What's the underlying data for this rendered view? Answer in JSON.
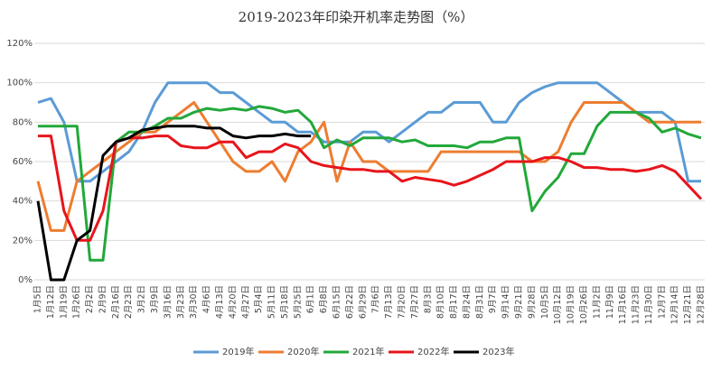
{
  "chart_data": {
    "type": "line",
    "title": "2019-2023年印染开机率走势图（%）",
    "categories": [
      "1月5日",
      "1月12日",
      "1月19日",
      "1月26日",
      "2月2日",
      "2月9日",
      "2月16日",
      "2月23日",
      "3月2日",
      "3月9日",
      "3月16日",
      "3月23日",
      "3月30日",
      "4月6日",
      "4月13日",
      "4月20日",
      "4月27日",
      "5月4日",
      "5月11日",
      "5月18日",
      "5月25日",
      "6月1日",
      "6月8日",
      "6月15日",
      "6月22日",
      "6月29日",
      "7月6日",
      "7月13日",
      "7月20日",
      "7月27日",
      "8月3日",
      "8月10日",
      "8月17日",
      "8月24日",
      "8月31日",
      "9月7日",
      "9月14日",
      "9月21日",
      "9月28日",
      "10月5日",
      "10月12日",
      "10月19日",
      "10月26日",
      "11月2日",
      "11月9日",
      "11月16日",
      "11月23日",
      "11月30日",
      "12月7日",
      "12月14日",
      "12月21日",
      "12月28日"
    ],
    "series": [
      {
        "name": "2019年",
        "color": "#5b9bd5",
        "values": [
          90,
          92,
          80,
          50,
          50,
          55,
          60,
          65,
          75,
          90,
          100,
          100,
          100,
          100,
          95,
          95,
          90,
          85,
          80,
          80,
          75,
          75,
          70,
          70,
          70,
          75,
          75,
          70,
          75,
          80,
          85,
          85,
          90,
          90,
          90,
          80,
          80,
          90,
          95,
          98,
          100,
          100,
          100,
          100,
          95,
          90,
          85,
          85,
          85,
          80,
          50,
          50
        ]
      },
      {
        "name": "2020年",
        "color": "#ed7d31",
        "values": [
          50,
          25,
          25,
          50,
          55,
          60,
          65,
          70,
          75,
          75,
          80,
          85,
          90,
          80,
          70,
          60,
          55,
          55,
          60,
          50,
          65,
          70,
          80,
          50,
          70,
          60,
          60,
          55,
          55,
          55,
          55,
          65,
          65,
          65,
          65,
          65,
          65,
          65,
          60,
          60,
          65,
          80,
          90,
          90,
          90,
          90,
          85,
          80,
          80,
          80,
          80,
          80
        ]
      },
      {
        "name": "2021年",
        "color": "#22a83a",
        "values": [
          78,
          78,
          78,
          78,
          10,
          10,
          70,
          75,
          75,
          78,
          82,
          82,
          85,
          87,
          86,
          87,
          86,
          88,
          87,
          85,
          86,
          80,
          67,
          71,
          68,
          72,
          72,
          72,
          70,
          71,
          68,
          68,
          68,
          67,
          70,
          70,
          72,
          72,
          35,
          45,
          52,
          64,
          64,
          78,
          85,
          85,
          85,
          82,
          75,
          77,
          74,
          72
        ]
      },
      {
        "name": "2022年",
        "color": "#e8141b",
        "values": [
          73,
          73,
          35,
          20,
          20,
          35,
          70,
          72,
          72,
          73,
          73,
          68,
          67,
          67,
          70,
          70,
          62,
          65,
          65,
          69,
          67,
          60,
          58,
          57,
          56,
          56,
          55,
          55,
          50,
          52,
          51,
          50,
          48,
          50,
          53,
          56,
          60,
          60,
          60,
          62,
          62,
          60,
          57,
          57,
          56,
          56,
          55,
          56,
          58,
          55,
          48,
          41
        ]
      },
      {
        "name": "2023年",
        "color": "#000000",
        "values": [
          40,
          0,
          0,
          20,
          25,
          63,
          70,
          72,
          76,
          77,
          78,
          78,
          78,
          77,
          77,
          73,
          72,
          73,
          73,
          74,
          73,
          73,
          null,
          null,
          null,
          null,
          null,
          null,
          null,
          null,
          null,
          null,
          null,
          null,
          null,
          null,
          null,
          null,
          null,
          null,
          null,
          null,
          null,
          null,
          null,
          null,
          null,
          null,
          null,
          null,
          null,
          null
        ]
      }
    ],
    "ylim": [
      0,
      120
    ],
    "yticks": [
      {
        "value": 0,
        "label": "0%"
      },
      {
        "value": 20,
        "label": "20%"
      },
      {
        "value": 40,
        "label": "40%"
      },
      {
        "value": 60,
        "label": "60%"
      },
      {
        "value": 80,
        "label": "80%"
      },
      {
        "value": 100,
        "label": "100%"
      },
      {
        "value": 120,
        "label": "120%"
      }
    ],
    "grid": true,
    "legend": "bottom"
  }
}
